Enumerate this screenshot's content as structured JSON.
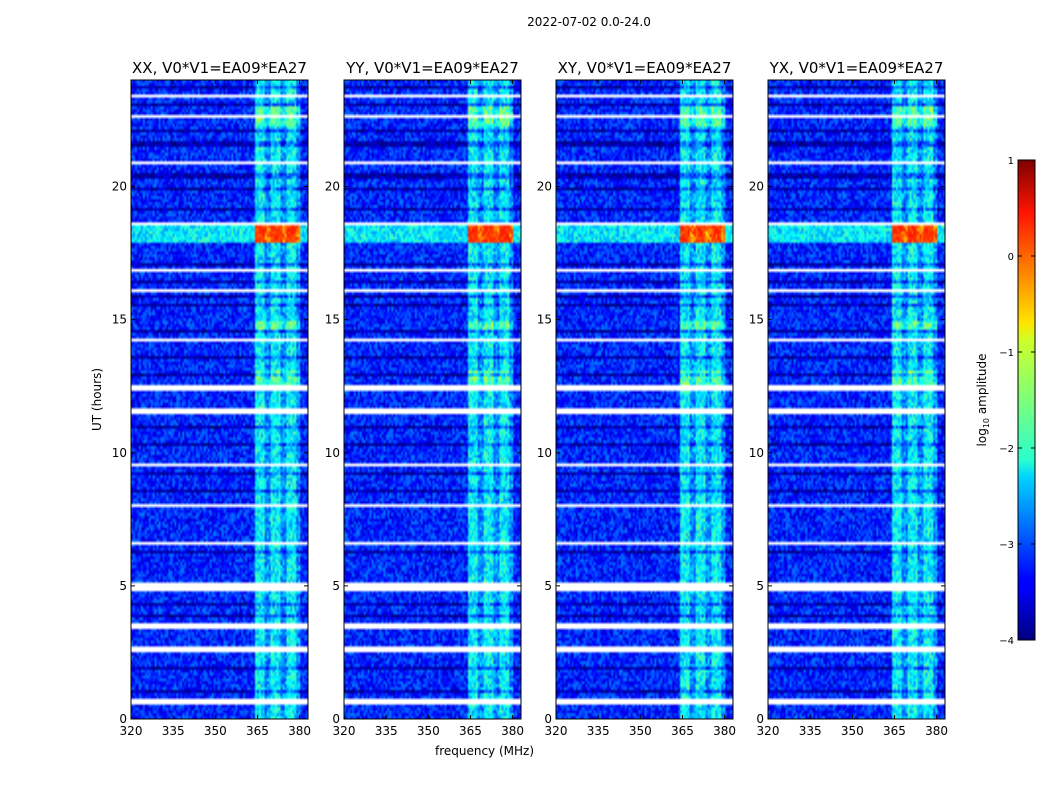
{
  "figure_title": "2022-07-02 0.0-24.0",
  "colormap": "jet",
  "chart_data": [
    {
      "type": "heatmap",
      "title": "XX, V0*V1=EA09*EA27",
      "xlabel": "",
      "ylabel": "UT (hours)",
      "xlim": [
        320,
        383
      ],
      "ylim": [
        0,
        24
      ],
      "xticks": [
        "320",
        "335",
        "350",
        "365",
        "380"
      ],
      "yticks": [
        "0",
        "5",
        "10",
        "15",
        "20"
      ],
      "peak_rfi_band_mhz": [
        364,
        380
      ],
      "peak_time_hours": 18.2,
      "peak_log10_amplitude": 0.3
    },
    {
      "type": "heatmap",
      "title": "YY, V0*V1=EA09*EA27",
      "xlabel": "frequency (MHz)",
      "ylabel": "",
      "xlim": [
        320,
        383
      ],
      "ylim": [
        0,
        24
      ],
      "xticks": [
        "320",
        "335",
        "350",
        "365",
        "380"
      ],
      "yticks": [
        "0",
        "5",
        "10",
        "15",
        "20"
      ],
      "peak_rfi_band_mhz": [
        364,
        380
      ],
      "peak_time_hours": 18.2,
      "peak_log10_amplitude": 0.3
    },
    {
      "type": "heatmap",
      "title": "XY, V0*V1=EA09*EA27",
      "xlabel": "",
      "ylabel": "",
      "xlim": [
        320,
        383
      ],
      "ylim": [
        0,
        24
      ],
      "xticks": [
        "320",
        "335",
        "350",
        "365",
        "380"
      ],
      "yticks": [
        "0",
        "5",
        "10",
        "15",
        "20"
      ],
      "peak_rfi_band_mhz": [
        364,
        380
      ],
      "peak_time_hours": 18.2,
      "peak_log10_amplitude": 0.3
    },
    {
      "type": "heatmap",
      "title": "YX, V0*V1=EA09*EA27",
      "xlabel": "",
      "ylabel": "",
      "xlim": [
        320,
        383
      ],
      "ylim": [
        0,
        24
      ],
      "xticks": [
        "320",
        "335",
        "350",
        "365",
        "380"
      ],
      "yticks": [
        "0",
        "5",
        "10",
        "15",
        "20"
      ],
      "peak_rfi_band_mhz": [
        364,
        380
      ],
      "peak_time_hours": 18.2,
      "peak_log10_amplitude": 0.3
    }
  ],
  "colorbar": {
    "label": "log10 amplitude",
    "label_base": "log",
    "label_sub": "10",
    "label_rest": " amplitude",
    "range": [
      -4,
      1
    ],
    "ticks": [
      "1",
      "0",
      "−1",
      "−2",
      "−3",
      "−4"
    ]
  }
}
